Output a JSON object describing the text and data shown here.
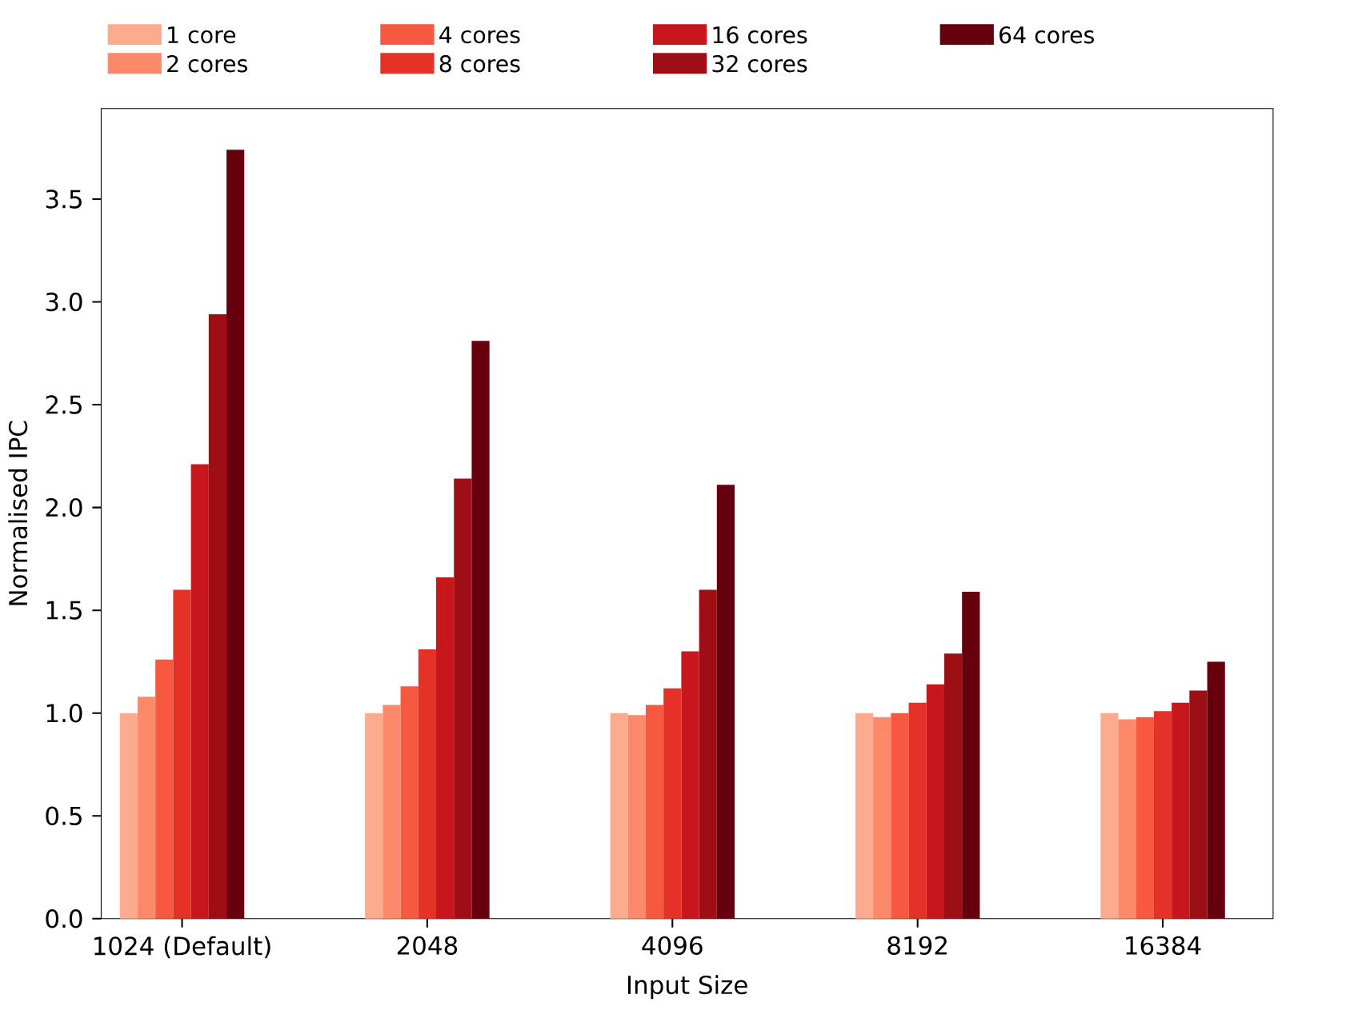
{
  "chart_data": {
    "type": "bar",
    "xlabel": "Input Size",
    "ylabel": "Normalised IPC",
    "categories": [
      "1024 (Default)",
      "2048",
      "4096",
      "8192",
      "16384"
    ],
    "series": [
      {
        "name": "1 core",
        "color": "#fcab8f",
        "values": [
          1.0,
          1.0,
          1.0,
          1.0,
          1.0
        ]
      },
      {
        "name": "2 cores",
        "color": "#fc8a6a",
        "values": [
          1.08,
          1.04,
          0.99,
          0.98,
          0.97
        ]
      },
      {
        "name": "4 cores",
        "color": "#f6593f",
        "values": [
          1.26,
          1.13,
          1.04,
          1.0,
          0.98
        ]
      },
      {
        "name": "8 cores",
        "color": "#e53228",
        "values": [
          1.6,
          1.31,
          1.12,
          1.05,
          1.01
        ]
      },
      {
        "name": "16 cores",
        "color": "#c8171c",
        "values": [
          2.21,
          1.66,
          1.3,
          1.14,
          1.05
        ]
      },
      {
        "name": "32 cores",
        "color": "#9e0e15",
        "values": [
          2.94,
          2.14,
          1.6,
          1.29,
          1.11
        ]
      },
      {
        "name": "64 cores",
        "color": "#67000d",
        "values": [
          3.74,
          2.81,
          2.11,
          1.59,
          1.25
        ]
      }
    ],
    "ylim": [
      0,
      3.94
    ],
    "yticks": [
      {
        "value": 0,
        "label": "0.0"
      },
      {
        "value": 0.5,
        "label": "0.5"
      },
      {
        "value": 1,
        "label": "1.0"
      },
      {
        "value": 1.5,
        "label": "1.5"
      },
      {
        "value": 2,
        "label": "2.0"
      },
      {
        "value": 2.5,
        "label": "2.5"
      },
      {
        "value": 3,
        "label": "3.0"
      },
      {
        "value": 3.5,
        "label": "3.5"
      }
    ],
    "legend": "top",
    "grid": false
  }
}
